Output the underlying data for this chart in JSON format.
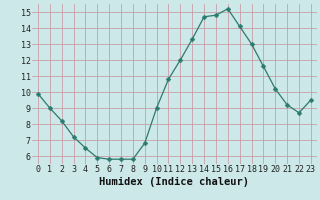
{
  "x": [
    0,
    1,
    2,
    3,
    4,
    5,
    6,
    7,
    8,
    9,
    10,
    11,
    12,
    13,
    14,
    15,
    16,
    17,
    18,
    19,
    20,
    21,
    22,
    23
  ],
  "y": [
    9.9,
    9.0,
    8.2,
    7.2,
    6.5,
    5.9,
    5.8,
    5.8,
    5.8,
    6.8,
    9.0,
    10.8,
    12.0,
    13.3,
    14.7,
    14.8,
    15.2,
    14.1,
    13.0,
    11.6,
    10.2,
    9.2,
    8.7,
    9.5
  ],
  "line_color": "#2d7a6e",
  "marker": "D",
  "marker_size": 2.5,
  "bg_color": "#cce8e8",
  "grid_color": "#c8a0a8",
  "xlabel": "Humidex (Indice chaleur)",
  "ylim": [
    5.5,
    15.5
  ],
  "xlim": [
    -0.5,
    23.5
  ],
  "yticks": [
    6,
    7,
    8,
    9,
    10,
    11,
    12,
    13,
    14,
    15
  ],
  "xticks": [
    0,
    1,
    2,
    3,
    4,
    5,
    6,
    7,
    8,
    9,
    10,
    11,
    12,
    13,
    14,
    15,
    16,
    17,
    18,
    19,
    20,
    21,
    22,
    23
  ],
  "xtick_labels": [
    "0",
    "1",
    "2",
    "3",
    "4",
    "5",
    "6",
    "7",
    "8",
    "9",
    "10",
    "11",
    "12",
    "13",
    "14",
    "15",
    "16",
    "17",
    "18",
    "19",
    "20",
    "21",
    "22",
    "23"
  ],
  "tick_fontsize": 6,
  "xlabel_fontsize": 7.5
}
